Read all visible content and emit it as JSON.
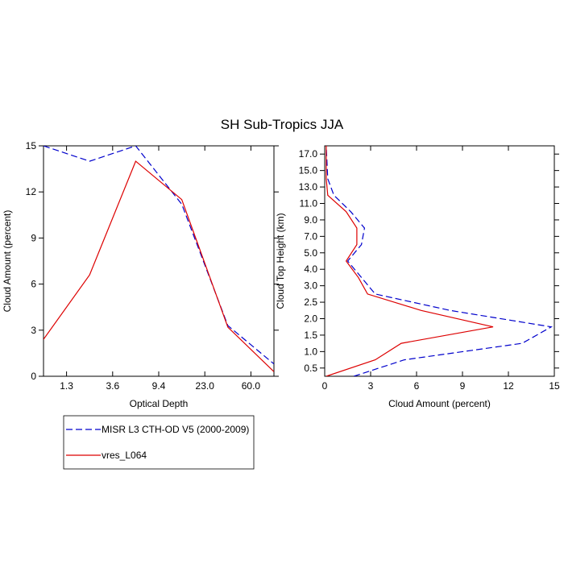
{
  "figure": {
    "title": "SH Sub-Tropics JJA",
    "colors": {
      "obs": "#0000cc",
      "model": "#dd0000",
      "axis": "#000000"
    },
    "legend": {
      "placement": "bottom-left",
      "entries": [
        {
          "label": "MISR L3 CTH-OD V5 (2000-2009)",
          "color": "#0000cc",
          "style": "dashed"
        },
        {
          "label": "vres_L064",
          "color": "#dd0000",
          "style": "solid"
        }
      ]
    }
  },
  "chart_data": [
    {
      "type": "line",
      "xlabel": "Optical Depth",
      "ylabel": "Cloud Amount (percent)",
      "x_tick_labels": [
        "1.3",
        "3.6",
        "9.4",
        "23.0",
        "60.0"
      ],
      "x_tick_positions": [
        0.5,
        1.5,
        2.5,
        3.5,
        4.5
      ],
      "xlim": [
        0,
        5
      ],
      "ylim": [
        0,
        15
      ],
      "y_ticks": [
        0,
        3,
        6,
        9,
        12,
        15
      ],
      "series": [
        {
          "name": "MISR L3 CTH-OD V5 (2000-2009)",
          "style": "dashed",
          "color": "#0000cc",
          "x": [
            0,
            1,
            2,
            3,
            4,
            5
          ],
          "y": [
            15.0,
            14.0,
            15.0,
            11.2,
            3.3,
            0.8
          ]
        },
        {
          "name": "vres_L064",
          "style": "solid",
          "color": "#dd0000",
          "x": [
            0,
            1,
            2,
            3,
            4,
            5
          ],
          "y": [
            2.4,
            6.6,
            14.0,
            11.5,
            3.2,
            0.3
          ]
        }
      ]
    },
    {
      "type": "line",
      "xlabel": "Cloud Amount (percent)",
      "ylabel": "Cloud Top Height (km)",
      "xlim": [
        0,
        15
      ],
      "x_ticks": [
        0,
        3,
        6,
        9,
        12,
        15
      ],
      "y_tick_labels": [
        "0.5",
        "1.0",
        "1.5",
        "2.0",
        "2.5",
        "3.0",
        "4.0",
        "5.0",
        "7.0",
        "9.0",
        "11.0",
        "13.0",
        "15.0",
        "17.0"
      ],
      "y_tick_positions": [
        0.5,
        1.5,
        2.5,
        3.5,
        4.5,
        5.5,
        6.5,
        7.5,
        8.5,
        9.5,
        10.5,
        11.5,
        12.5,
        13.5
      ],
      "ylim": [
        0,
        14
      ],
      "series": [
        {
          "name": "MISR L3 CTH-OD V5 (2000-2009)",
          "style": "dashed",
          "color": "#0000cc",
          "x": [
            1.9,
            5.2,
            12.9,
            14.8,
            8.2,
            3.3,
            2.4,
            1.5,
            2.4,
            2.6,
            1.7,
            0.6,
            0.2,
            0.1
          ],
          "y": [
            0.0,
            1.0,
            2.0,
            3.0,
            4.0,
            5.0,
            6.0,
            7.0,
            8.0,
            9.0,
            10.0,
            11.0,
            12.0,
            14.0
          ]
        },
        {
          "name": "vres_L064",
          "style": "solid",
          "color": "#dd0000",
          "x": [
            0.1,
            3.3,
            5.0,
            11.0,
            6.3,
            2.8,
            2.2,
            1.4,
            2.1,
            2.1,
            1.4,
            0.2,
            0.1,
            0.1
          ],
          "y": [
            0.0,
            1.0,
            2.0,
            3.0,
            4.0,
            5.0,
            6.0,
            7.0,
            8.0,
            9.0,
            10.0,
            11.0,
            12.0,
            14.0
          ]
        }
      ]
    }
  ]
}
